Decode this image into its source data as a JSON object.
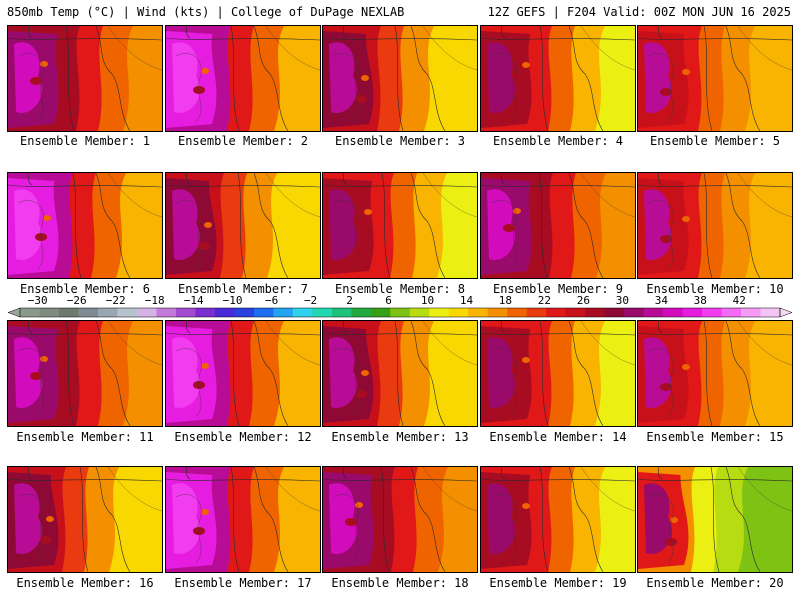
{
  "header": {
    "left_title": "850mb Temp (°C) | Wind (kts) | College of DuPage NEXLAB",
    "right_title": "12Z GEFS | F204 Valid: 00Z MON JUN 16 2025"
  },
  "colorbar": {
    "tick_labels": [
      "-30",
      "-26",
      "-22",
      "-18",
      "-14",
      "-10",
      "-6",
      "-2",
      "2",
      "6",
      "10",
      "14",
      "18",
      "22",
      "26",
      "30",
      "34",
      "38",
      "42"
    ],
    "colors": [
      "#8a9a8a",
      "#808b80",
      "#6e7a70",
      "#7f8a93",
      "#9aa6b2",
      "#b8c2cc",
      "#d6b3e6",
      "#c47ad8",
      "#a24ad2",
      "#7a2ed0",
      "#4a2ad8",
      "#2a40e0",
      "#1e6ef0",
      "#22a2f0",
      "#2ed2ec",
      "#22d8b0",
      "#1ec27a",
      "#22aa40",
      "#36a018",
      "#7ec214",
      "#b8dc12",
      "#ecf012",
      "#f8d800",
      "#f8b400",
      "#f49000",
      "#f06400",
      "#ea3a10",
      "#e01818",
      "#c8101a",
      "#a80c22",
      "#8e0a34",
      "#9a0a6a",
      "#b80c96",
      "#d20cbc",
      "#e61ce0",
      "#f23cf0",
      "#f46af4",
      "#f49cf4",
      "#f4c4f4"
    ]
  },
  "members": [
    {
      "label": "Ensemble Member: 1",
      "variant": 0
    },
    {
      "label": "Ensemble Member: 2",
      "variant": 1
    },
    {
      "label": "Ensemble Member: 3",
      "variant": 2
    },
    {
      "label": "Ensemble Member: 4",
      "variant": 3
    },
    {
      "label": "Ensemble Member: 5",
      "variant": 4
    },
    {
      "label": "Ensemble Member: 6",
      "variant": 1
    },
    {
      "label": "Ensemble Member: 7",
      "variant": 2
    },
    {
      "label": "Ensemble Member: 8",
      "variant": 3
    },
    {
      "label": "Ensemble Member: 9",
      "variant": 0
    },
    {
      "label": "Ensemble Member: 10",
      "variant": 4
    },
    {
      "label": "Ensemble Member: 11",
      "variant": 0
    },
    {
      "label": "Ensemble Member: 12",
      "variant": 1
    },
    {
      "label": "Ensemble Member: 13",
      "variant": 2
    },
    {
      "label": "Ensemble Member: 14",
      "variant": 3
    },
    {
      "label": "Ensemble Member: 15",
      "variant": 4
    },
    {
      "label": "Ensemble Member: 16",
      "variant": 2
    },
    {
      "label": "Ensemble Member: 17",
      "variant": 1
    },
    {
      "label": "Ensemble Member: 18",
      "variant": 0
    },
    {
      "label": "Ensemble Member: 19",
      "variant": 3
    },
    {
      "label": "Ensemble Member: 20",
      "variant": 5
    }
  ]
}
